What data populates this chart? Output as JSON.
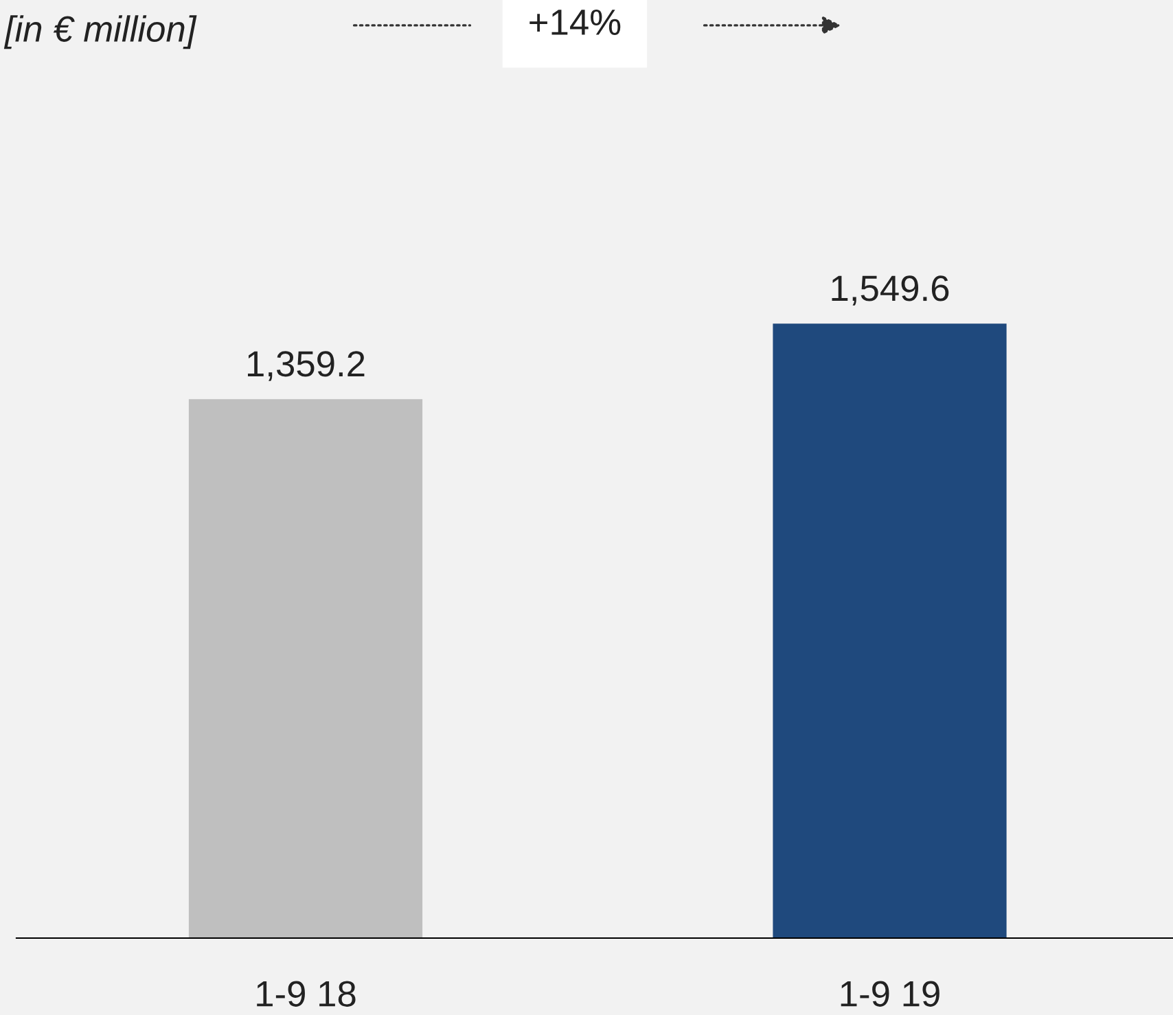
{
  "chart_data": {
    "type": "bar",
    "title": "[in € million]",
    "categories": [
      "1-9 18",
      "1-9 19"
    ],
    "values": [
      1359.2,
      1549.6
    ],
    "colors": [
      "#bfbfbf",
      "#1f497d"
    ],
    "value_labels": [
      "1,359.2",
      "1,549.6"
    ],
    "annotations": [
      "+14%"
    ],
    "grid": false,
    "legend": false
  }
}
